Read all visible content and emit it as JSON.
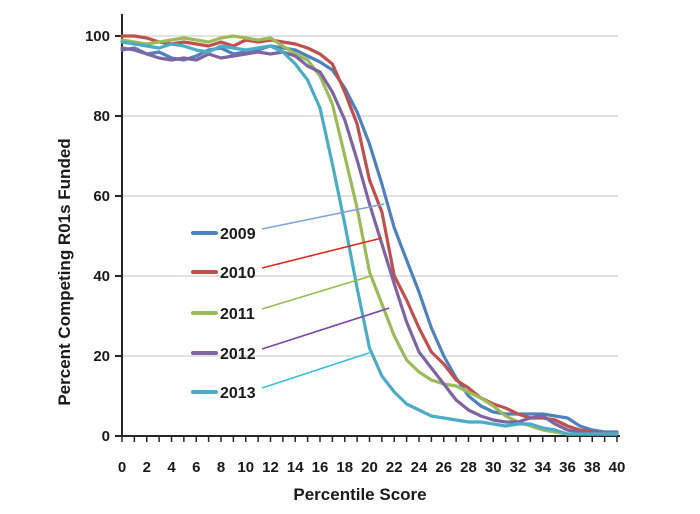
{
  "chart_data": {
    "type": "line",
    "title": "",
    "xlabel": "Percentile Score",
    "ylabel": "Percent Competing R01s Funded",
    "xlim": [
      0,
      40
    ],
    "ylim": [
      0,
      100
    ],
    "x_tick_labels": [
      0,
      2,
      4,
      6,
      8,
      10,
      12,
      14,
      16,
      18,
      20,
      22,
      24,
      26,
      28,
      30,
      32,
      34,
      36,
      38,
      40
    ],
    "x_minor_tick_step": 1,
    "y_ticks": [
      0,
      20,
      40,
      60,
      80,
      100
    ],
    "grid": "horizontal-only",
    "grid_color": "#c6c6c6",
    "axis_color": "#262626",
    "legend_position": "inside-left-middle",
    "x": [
      0,
      1,
      2,
      3,
      4,
      5,
      6,
      7,
      8,
      9,
      10,
      11,
      12,
      13,
      14,
      15,
      16,
      17,
      18,
      19,
      20,
      21,
      22,
      23,
      24,
      25,
      26,
      27,
      28,
      29,
      30,
      31,
      32,
      33,
      34,
      35,
      36,
      37,
      38,
      39,
      40
    ],
    "series": [
      {
        "name": "2009",
        "color": "#4F81BD",
        "callout_color": "#7EA4DC",
        "callout_target": {
          "x": 21.2,
          "y": 58
        },
        "values": [
          96.5,
          97,
          95.5,
          96,
          94.5,
          94,
          95,
          96.5,
          97,
          95.5,
          96,
          96.5,
          97.5,
          97,
          96.5,
          95,
          93.5,
          91.5,
          87,
          81,
          73,
          63,
          52,
          44,
          36,
          27,
          20,
          14.5,
          10,
          7.5,
          6,
          5.5,
          5.5,
          5.5,
          5.5,
          5,
          4.5,
          2.5,
          1.5,
          1,
          1
        ]
      },
      {
        "name": "2010",
        "color": "#C0504D",
        "callout_color": "#DD2A1E",
        "callout_target": {
          "x": 21.0,
          "y": 49.5
        },
        "values": [
          100,
          100,
          99.5,
          98.5,
          98,
          98.5,
          98,
          97.5,
          98.5,
          97.5,
          99,
          98.5,
          99,
          98.5,
          98,
          97,
          95.5,
          93,
          86,
          78,
          64,
          56,
          40,
          34,
          27,
          21,
          18,
          14,
          12,
          9.5,
          8,
          7,
          5.5,
          4.5,
          4.5,
          4,
          2.5,
          1.5,
          1,
          0.5,
          0.5
        ]
      },
      {
        "name": "2011",
        "color": "#9BBB59",
        "callout_color": "#94BE4A",
        "callout_target": {
          "x": 20.1,
          "y": 40
        },
        "values": [
          99,
          98.5,
          98,
          98.5,
          99,
          99.5,
          99,
          98.5,
          99.5,
          100,
          99.5,
          99,
          99.5,
          97.5,
          95.5,
          94,
          90,
          83,
          70,
          57,
          41,
          33,
          25,
          19,
          16,
          14,
          13,
          12.5,
          11,
          9.5,
          7.5,
          5,
          3.5,
          2.5,
          1.5,
          1,
          0.5,
          0.5,
          0.5,
          0.5,
          0.5
        ]
      },
      {
        "name": "2012",
        "color": "#8064A2",
        "callout_color": "#8143A8",
        "callout_target": {
          "x": 21.6,
          "y": 32
        },
        "values": [
          97,
          96.5,
          95.5,
          94.5,
          94,
          94.5,
          94,
          95.5,
          94.5,
          95,
          95.5,
          96,
          95.5,
          96,
          95,
          92.5,
          91,
          86,
          79,
          69,
          58,
          48,
          38,
          28.5,
          21,
          17,
          13,
          9,
          6.5,
          5,
          4,
          3.5,
          3.5,
          4.5,
          5,
          3,
          1.5,
          1,
          0.5,
          0.5,
          0.5
        ]
      },
      {
        "name": "2013",
        "color": "#4BACC6",
        "callout_color": "#36C2DC",
        "callout_target": {
          "x": 20.0,
          "y": 20.8
        },
        "values": [
          98.5,
          98,
          97.5,
          97,
          98,
          97.5,
          96.5,
          96,
          97.5,
          97,
          96.5,
          97,
          97.5,
          96,
          93,
          89,
          82,
          68,
          53,
          37,
          22,
          15,
          11,
          8,
          6.5,
          5,
          4.5,
          4,
          3.5,
          3.5,
          3,
          2.5,
          3,
          3,
          2,
          1.5,
          0.5,
          0.5,
          0.5,
          0.5,
          0.5
        ]
      }
    ]
  }
}
